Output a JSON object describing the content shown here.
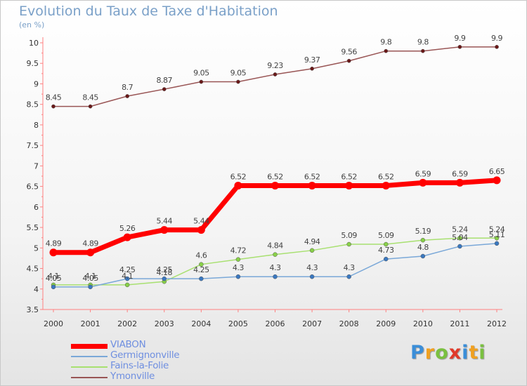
{
  "chart_data": {
    "type": "line",
    "title": "Evolution du Taux de Taxe d'Habitation",
    "unit_label": "(en %)",
    "x": [
      "2000",
      "2001",
      "2002",
      "2003",
      "2004",
      "2005",
      "2006",
      "2007",
      "2008",
      "2009",
      "2010",
      "2011",
      "2012"
    ],
    "ylim": [
      3.5,
      10
    ],
    "yticks": [
      "3.5",
      "4",
      "4.5",
      "5",
      "5.5",
      "6",
      "6.5",
      "7",
      "7.5",
      "8",
      "8.5",
      "9",
      "9.5",
      "10"
    ],
    "grid": false,
    "legend_position": "bottom-left",
    "series": [
      {
        "name": "VIABON",
        "color": "#ff0000",
        "values": [
          4.89,
          4.89,
          5.26,
          5.44,
          5.44,
          6.52,
          6.52,
          6.52,
          6.52,
          6.52,
          6.59,
          6.59,
          6.65
        ],
        "labels": [
          "4.89",
          "4.89",
          "5.26",
          "5.44",
          "5.44",
          "6.52",
          "6.52",
          "6.52",
          "6.52",
          "6.52",
          "6.59",
          "6.59",
          "6.65"
        ]
      },
      {
        "name": "Germignonville",
        "color": "#7aa8d8",
        "values": [
          4.05,
          4.05,
          4.25,
          4.25,
          4.25,
          4.3,
          4.3,
          4.3,
          4.3,
          4.73,
          4.8,
          5.04,
          5.11
        ],
        "labels": [
          "4.05",
          "4.05",
          "4.25",
          "4.25",
          "4.25",
          "4.3",
          "4.3",
          "4.3",
          "4.3",
          "4.73",
          "4.8",
          "5.04",
          "5.11"
        ]
      },
      {
        "name": "Fains-la-Folie",
        "color": "#a8e070",
        "values": [
          4.1,
          4.1,
          4.1,
          4.18,
          4.6,
          4.72,
          4.84,
          4.94,
          5.09,
          5.09,
          5.19,
          5.24,
          5.24
        ],
        "labels": [
          "4.1",
          "4.1",
          "4.1",
          "4.18",
          "4.6",
          "4.72",
          "4.84",
          "4.94",
          "5.09",
          "5.09",
          "5.19",
          "5.24",
          "5.24"
        ]
      },
      {
        "name": "Ymonville",
        "color": "#995555",
        "values": [
          8.45,
          8.45,
          8.7,
          8.87,
          9.05,
          9.05,
          9.23,
          9.37,
          9.56,
          9.8,
          9.8,
          9.9,
          9.9
        ],
        "labels": [
          "8.45",
          "8.45",
          "8.7",
          "8.87",
          "9.05",
          "9.05",
          "9.23",
          "9.37",
          "9.56",
          "9.8",
          "9.8",
          "9.9",
          "9.9"
        ]
      }
    ]
  },
  "brand": {
    "letters": [
      "P",
      "r",
      "o",
      "x",
      "i",
      "t",
      "i"
    ],
    "colors": [
      "#3b8ed8",
      "#f0a020",
      "#7ac040",
      "#e03a2a",
      "#3b8ed8",
      "#f0a020",
      "#7ac040"
    ]
  }
}
